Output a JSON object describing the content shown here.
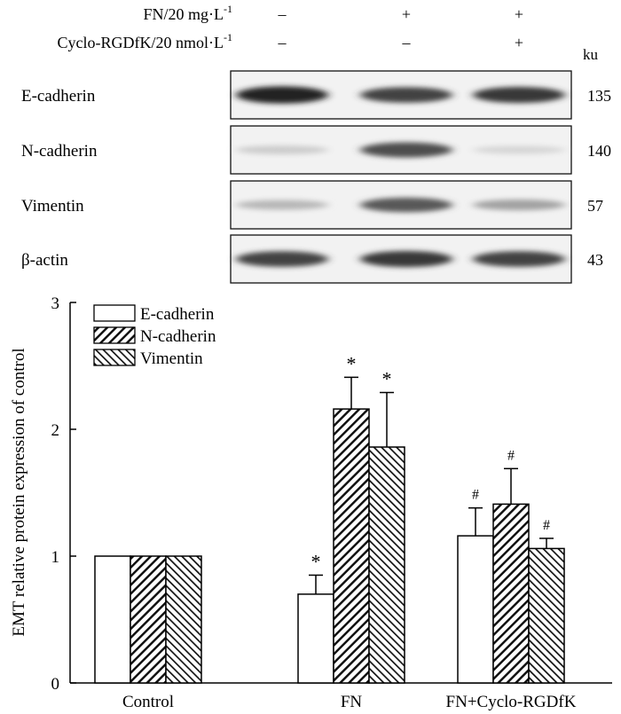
{
  "blot": {
    "header_rows": [
      {
        "label_main": "FN/20 mg·L",
        "label_sup": "-1",
        "marks": [
          "–",
          "+",
          "+"
        ]
      },
      {
        "label_main": "Cyclo-RGDfK/20 nmol·L",
        "label_sup": "-1",
        "marks": [
          "–",
          "–",
          "+"
        ]
      }
    ],
    "unit": "ku",
    "rows": [
      {
        "name": "E-cadherin",
        "size": "135",
        "intensity": [
          0.95,
          0.8,
          0.85
        ]
      },
      {
        "name": "N-cadherin",
        "size": "140",
        "intensity": [
          0.15,
          0.75,
          0.1
        ]
      },
      {
        "name": "Vimentin",
        "size": "57",
        "intensity": [
          0.25,
          0.7,
          0.35
        ]
      },
      {
        "name": "β-actin",
        "size": "43",
        "intensity": [
          0.8,
          0.85,
          0.8
        ]
      }
    ]
  },
  "chart_data": {
    "type": "bar",
    "ylabel": "EMT relative protein expression of control",
    "ylim": [
      0,
      3
    ],
    "yticks": [
      "0",
      "1",
      "2",
      "3"
    ],
    "categories": [
      "Control",
      "FN",
      "FN+Cyclo-RGDfK"
    ],
    "legend_position": "top-left",
    "series": [
      {
        "name": "E-cadherin",
        "pattern": "white",
        "values": [
          1.0,
          0.7,
          1.16
        ],
        "errors": [
          0,
          0.15,
          0.22
        ],
        "marks": [
          "",
          "*",
          "#"
        ]
      },
      {
        "name": "N-cadherin",
        "pattern": "hatch-dense",
        "values": [
          1.0,
          2.16,
          1.41
        ],
        "errors": [
          0,
          0.25,
          0.28
        ],
        "marks": [
          "",
          "*",
          "#"
        ]
      },
      {
        "name": "Vimentin",
        "pattern": "hatch-back",
        "values": [
          1.0,
          1.86,
          1.06
        ],
        "errors": [
          0,
          0.43,
          0.08
        ],
        "marks": [
          "",
          "*",
          "#"
        ]
      }
    ]
  }
}
